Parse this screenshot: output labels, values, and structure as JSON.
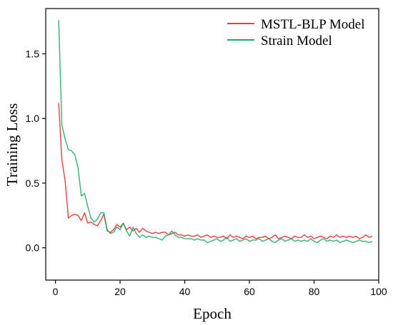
{
  "chart_data": {
    "type": "line",
    "title": "",
    "xlabel": "Epoch",
    "ylabel": "Training Loss",
    "xlim": [
      -3,
      100
    ],
    "ylim": [
      -0.25,
      1.85
    ],
    "xticks": [
      0,
      20,
      40,
      60,
      80,
      100
    ],
    "yticks": [
      0.0,
      0.5,
      1.0,
      1.5
    ],
    "grid": false,
    "legend_position": "top-right",
    "x": [
      1,
      2,
      3,
      4,
      5,
      6,
      7,
      8,
      9,
      10,
      11,
      12,
      13,
      14,
      15,
      16,
      17,
      18,
      19,
      20,
      21,
      22,
      23,
      24,
      25,
      26,
      27,
      28,
      29,
      30,
      31,
      32,
      33,
      34,
      35,
      36,
      37,
      38,
      39,
      40,
      41,
      42,
      43,
      44,
      45,
      46,
      47,
      48,
      49,
      50,
      51,
      52,
      53,
      54,
      55,
      56,
      57,
      58,
      59,
      60,
      61,
      62,
      63,
      64,
      65,
      66,
      67,
      68,
      69,
      70,
      71,
      72,
      73,
      74,
      75,
      76,
      77,
      78,
      79,
      80,
      81,
      82,
      83,
      84,
      85,
      86,
      87,
      88,
      89,
      90,
      91,
      92,
      93,
      94,
      95,
      96,
      97,
      98
    ],
    "series": [
      {
        "name": "MSTL-BLP Model",
        "color": "#e8403e",
        "values": [
          1.12,
          0.68,
          0.52,
          0.23,
          0.25,
          0.26,
          0.25,
          0.21,
          0.27,
          0.19,
          0.2,
          0.18,
          0.17,
          0.21,
          0.26,
          0.13,
          0.12,
          0.14,
          0.18,
          0.16,
          0.19,
          0.14,
          0.16,
          0.13,
          0.15,
          0.12,
          0.15,
          0.13,
          0.12,
          0.11,
          0.12,
          0.11,
          0.12,
          0.12,
          0.1,
          0.11,
          0.12,
          0.1,
          0.1,
          0.09,
          0.1,
          0.09,
          0.09,
          0.1,
          0.08,
          0.09,
          0.1,
          0.08,
          0.09,
          0.08,
          0.08,
          0.09,
          0.07,
          0.1,
          0.08,
          0.09,
          0.08,
          0.07,
          0.09,
          0.08,
          0.09,
          0.07,
          0.08,
          0.08,
          0.09,
          0.07,
          0.08,
          0.1,
          0.07,
          0.08,
          0.09,
          0.08,
          0.07,
          0.09,
          0.08,
          0.08,
          0.1,
          0.08,
          0.09,
          0.07,
          0.08,
          0.09,
          0.08,
          0.07,
          0.09,
          0.08,
          0.1,
          0.08,
          0.09,
          0.08,
          0.09,
          0.08,
          0.09,
          0.07,
          0.08,
          0.1,
          0.08,
          0.09
        ]
      },
      {
        "name": "Strain Model",
        "color": "#1fa866",
        "values": [
          1.76,
          0.95,
          0.84,
          0.76,
          0.75,
          0.72,
          0.62,
          0.4,
          0.42,
          0.32,
          0.23,
          0.2,
          0.22,
          0.27,
          0.27,
          0.14,
          0.11,
          0.12,
          0.16,
          0.14,
          0.19,
          0.13,
          0.09,
          0.16,
          0.11,
          0.08,
          0.1,
          0.08,
          0.09,
          0.08,
          0.08,
          0.07,
          0.06,
          0.09,
          0.1,
          0.13,
          0.1,
          0.08,
          0.08,
          0.07,
          0.07,
          0.07,
          0.06,
          0.07,
          0.06,
          0.06,
          0.04,
          0.05,
          0.06,
          0.07,
          0.05,
          0.06,
          0.08,
          0.05,
          0.06,
          0.07,
          0.05,
          0.06,
          0.07,
          0.05,
          0.06,
          0.06,
          0.07,
          0.05,
          0.06,
          0.07,
          0.05,
          0.04,
          0.06,
          0.07,
          0.05,
          0.06,
          0.07,
          0.05,
          0.06,
          0.05,
          0.06,
          0.05,
          0.07,
          0.05,
          0.04,
          0.06,
          0.07,
          0.05,
          0.06,
          0.05,
          0.06,
          0.04,
          0.05,
          0.06,
          0.05,
          0.04,
          0.05,
          0.06,
          0.05,
          0.05,
          0.04,
          0.05
        ]
      }
    ]
  }
}
